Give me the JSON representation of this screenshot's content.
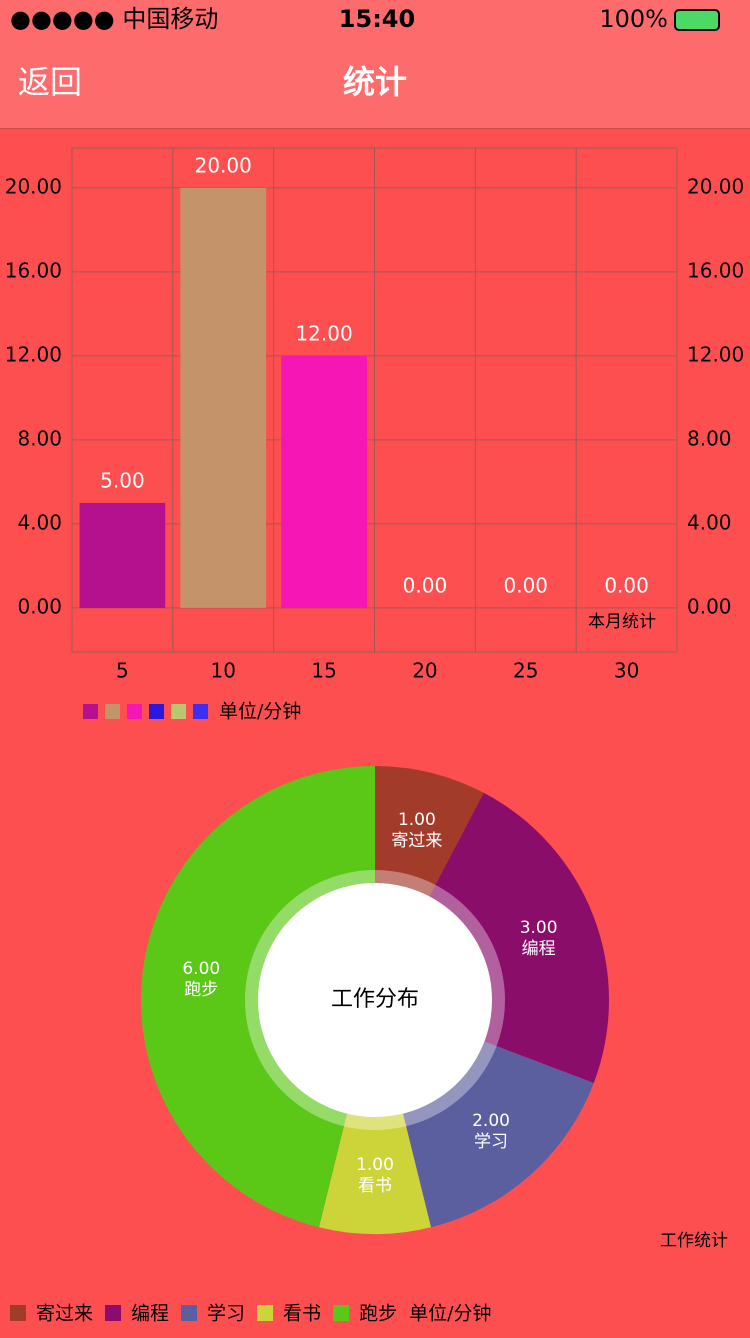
{
  "status_bar": {
    "carrier": "●●●●● 中国移动",
    "time": "15:40",
    "battery": "100%"
  },
  "nav": {
    "back": "返回",
    "title": "统计"
  },
  "chart_data": [
    {
      "type": "bar",
      "categories": [
        "5",
        "10",
        "15",
        "20",
        "25",
        "30"
      ],
      "values": [
        5,
        20,
        12,
        0,
        0,
        0
      ],
      "value_labels": [
        "5.00",
        "20.00",
        "12.00",
        "0.00",
        "0.00",
        "0.00"
      ],
      "colors": [
        "#b5108e",
        "#c4936a",
        "#f516b5",
        "#2a18e0",
        "#b9c86e",
        "#3d2ef0"
      ],
      "ylim": [
        -2.1,
        21.9
      ],
      "yticks": [
        {
          "value": 0,
          "label": "0.00"
        },
        {
          "value": 4,
          "label": "4.00"
        },
        {
          "value": 8,
          "label": "8.00"
        },
        {
          "value": 12,
          "label": "12.00"
        },
        {
          "value": 16,
          "label": "16.00"
        },
        {
          "value": 20,
          "label": "20.00"
        }
      ],
      "y2lim": [
        -2.1,
        21.9
      ],
      "y2ticks": [
        {
          "value": 0,
          "label": "0.00"
        },
        {
          "value": 4,
          "label": "4.00"
        },
        {
          "value": 8,
          "label": "8.00"
        },
        {
          "value": 12,
          "label": "12.00"
        },
        {
          "value": 16,
          "label": "16.00"
        },
        {
          "value": 20,
          "label": "20.00"
        }
      ],
      "grid": true,
      "annotation": "本月统计",
      "legend_unit": "单位/分钟"
    },
    {
      "type": "pie",
      "categories": [
        "寄过来",
        "编程",
        "学习",
        "看书",
        "跑步"
      ],
      "values": [
        1,
        3,
        2,
        1,
        6
      ],
      "value_labels": [
        "1.00",
        "3.00",
        "2.00",
        "1.00",
        "6.00"
      ],
      "colors": [
        "#a33b2b",
        "#8b0d6a",
        "#5b5f9f",
        "#cdd43a",
        "#5bc817"
      ],
      "center_text": "工作分布",
      "annotation": "工作统计",
      "legend_unit": "单位/分钟"
    }
  ]
}
